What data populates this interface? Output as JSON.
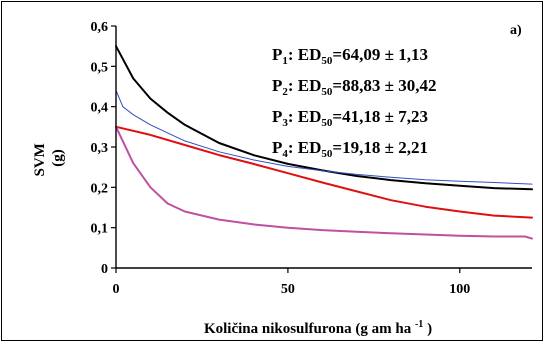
{
  "chart_data": {
    "type": "line",
    "panel_label": "a)",
    "ylabel_main": "SVM",
    "ylabel_unit": "(g)",
    "xlabel_main": "Količina nikosulfurona (g am ha",
    "xlabel_sup": "-1",
    "xlabel_end": ")",
    "xlim": [
      0,
      121
    ],
    "ylim": [
      0,
      0.6
    ],
    "xticks": [
      0,
      50,
      100
    ],
    "xtick_labels": [
      "0",
      "50",
      "100"
    ],
    "yticks": [
      0,
      0.1,
      0.2,
      0.3,
      0.4,
      0.5,
      0.6
    ],
    "ytick_labels": [
      "0",
      "0,1",
      "0,2",
      "0,3",
      "0,4",
      "0,5",
      "0,6"
    ],
    "annotations": [
      {
        "pre": "P",
        "sub1": "1",
        "mid": ": ED",
        "sub2": "50",
        "post": "=64,09 ± 1,13"
      },
      {
        "pre": "P",
        "sub1": "2",
        "mid": ": ED",
        "sub2": "50",
        "post": "=88,83 ± 30,42"
      },
      {
        "pre": "P",
        "sub1": "3",
        "mid": ": ED",
        "sub2": "50",
        "post": "=41,18 ± 7,23"
      },
      {
        "pre": "P",
        "sub1": "4",
        "mid": ": ED",
        "sub2": "50",
        "post": "=19,18 ± 2,21"
      }
    ],
    "series": [
      {
        "color": "#000000",
        "width": 2,
        "x": [
          0,
          5,
          10,
          15,
          20,
          30,
          40,
          50,
          60,
          70,
          80,
          90,
          100,
          110,
          121
        ],
        "y": [
          0.55,
          0.47,
          0.42,
          0.385,
          0.355,
          0.31,
          0.28,
          0.258,
          0.242,
          0.228,
          0.218,
          0.21,
          0.204,
          0.198,
          0.195
        ]
      },
      {
        "color": "#3050c0",
        "width": 1,
        "x": [
          0,
          2,
          5,
          10,
          15,
          20,
          30,
          40,
          50,
          60,
          70,
          80,
          90,
          100,
          110,
          121
        ],
        "y": [
          0.44,
          0.4,
          0.38,
          0.355,
          0.335,
          0.315,
          0.288,
          0.268,
          0.252,
          0.241,
          0.232,
          0.225,
          0.219,
          0.215,
          0.212,
          0.208
        ]
      },
      {
        "color": "#e01010",
        "width": 2,
        "x": [
          0,
          10,
          20,
          30,
          40,
          50,
          60,
          70,
          80,
          90,
          100,
          110,
          121
        ],
        "y": [
          0.35,
          0.33,
          0.305,
          0.28,
          0.258,
          0.235,
          0.212,
          0.19,
          0.168,
          0.152,
          0.14,
          0.13,
          0.125
        ]
      },
      {
        "color": "#c050a0",
        "width": 2,
        "x": [
          0,
          5,
          10,
          15,
          20,
          30,
          40,
          50,
          60,
          70,
          80,
          90,
          100,
          110,
          119,
          121
        ],
        "y": [
          0.35,
          0.26,
          0.2,
          0.16,
          0.14,
          0.12,
          0.108,
          0.1,
          0.094,
          0.09,
          0.086,
          0.083,
          0.08,
          0.078,
          0.078,
          0.073
        ]
      }
    ]
  }
}
